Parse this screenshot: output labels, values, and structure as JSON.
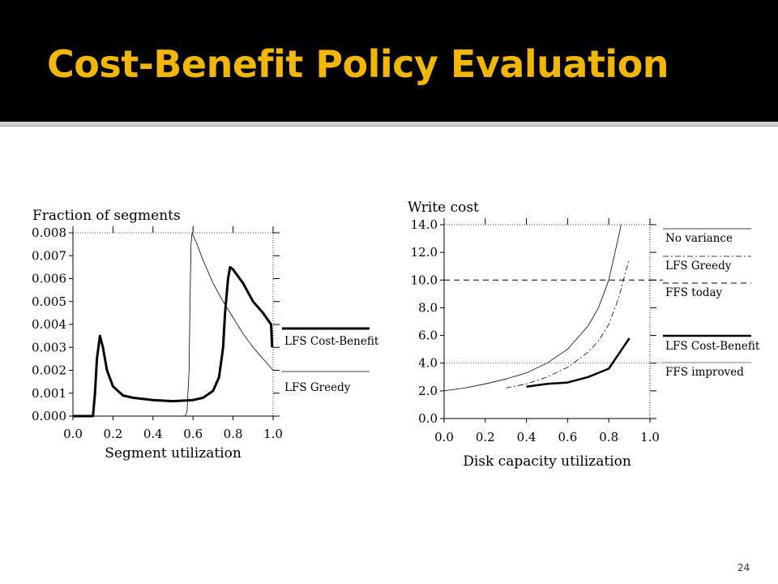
{
  "slide": {
    "title": "Cost-Benefit Policy Evaluation",
    "page_number": "24",
    "title_color": "#f2b705",
    "title_bar_color": "#000000"
  },
  "chart_data": [
    {
      "type": "line",
      "title": "Fraction of segments",
      "xlabel": "Segment utilization",
      "ylabel": "",
      "xlim": [
        0.0,
        1.0
      ],
      "ylim": [
        0.0,
        0.008
      ],
      "xticks": [
        "0.0",
        "0.2",
        "0.4",
        "0.6",
        "0.8",
        "1.0"
      ],
      "yticks": [
        "0.000",
        "0.001",
        "0.002",
        "0.003",
        "0.004",
        "0.005",
        "0.006",
        "0.007",
        "0.008"
      ],
      "grid": false,
      "legend_position": "right",
      "series": [
        {
          "name": "LFS Cost-Benefit",
          "style": "thick",
          "points": [
            [
              0.0,
              0.0
            ],
            [
              0.1,
              0.0
            ],
            [
              0.11,
              0.001
            ],
            [
              0.12,
              0.0025
            ],
            [
              0.135,
              0.0035
            ],
            [
              0.15,
              0.003
            ],
            [
              0.17,
              0.002
            ],
            [
              0.2,
              0.0013
            ],
            [
              0.25,
              0.0009
            ],
            [
              0.3,
              0.0008
            ],
            [
              0.4,
              0.0007
            ],
            [
              0.5,
              0.00065
            ],
            [
              0.6,
              0.0007
            ],
            [
              0.65,
              0.0008
            ],
            [
              0.7,
              0.0011
            ],
            [
              0.73,
              0.0017
            ],
            [
              0.75,
              0.003
            ],
            [
              0.76,
              0.0045
            ],
            [
              0.775,
              0.006
            ],
            [
              0.785,
              0.0065
            ],
            [
              0.8,
              0.0064
            ],
            [
              0.85,
              0.0058
            ],
            [
              0.9,
              0.005
            ],
            [
              0.95,
              0.0045
            ],
            [
              0.99,
              0.004
            ],
            [
              0.995,
              0.003
            ]
          ]
        },
        {
          "name": "LFS Greedy",
          "style": "thin",
          "points": [
            [
              0.0,
              0.0
            ],
            [
              0.56,
              0.0
            ],
            [
              0.57,
              0.0002
            ],
            [
              0.58,
              0.002
            ],
            [
              0.585,
              0.005
            ],
            [
              0.59,
              0.0075
            ],
            [
              0.595,
              0.008
            ],
            [
              0.62,
              0.0075
            ],
            [
              0.65,
              0.0068
            ],
            [
              0.7,
              0.0058
            ],
            [
              0.75,
              0.005
            ],
            [
              0.8,
              0.0043
            ],
            [
              0.85,
              0.0036
            ],
            [
              0.9,
              0.003
            ],
            [
              0.95,
              0.0025
            ],
            [
              1.0,
              0.002
            ]
          ]
        }
      ]
    },
    {
      "type": "line",
      "title": "Write cost",
      "xlabel": "Disk capacity utilization",
      "ylabel": "",
      "xlim": [
        0.0,
        1.0
      ],
      "ylim": [
        0.0,
        14.0
      ],
      "xticks": [
        "0.0",
        "0.2",
        "0.4",
        "0.6",
        "0.8",
        "1.0"
      ],
      "yticks": [
        "0.0",
        "2.0",
        "4.0",
        "6.0",
        "8.0",
        "10.0",
        "12.0",
        "14.0"
      ],
      "grid": false,
      "legend_position": "right",
      "series": [
        {
          "name": "No variance",
          "style": "thin",
          "points": [
            [
              0.0,
              2.0
            ],
            [
              0.1,
              2.2
            ],
            [
              0.2,
              2.5
            ],
            [
              0.3,
              2.85
            ],
            [
              0.4,
              3.3
            ],
            [
              0.5,
              4.0
            ],
            [
              0.6,
              5.0
            ],
            [
              0.7,
              6.7
            ],
            [
              0.75,
              8.0
            ],
            [
              0.8,
              10.0
            ],
            [
              0.85,
              13.3
            ],
            [
              0.86,
              14.0
            ]
          ]
        },
        {
          "name": "LFS Greedy",
          "style": "dashdot",
          "points": [
            [
              0.3,
              2.2
            ],
            [
              0.4,
              2.5
            ],
            [
              0.5,
              3.0
            ],
            [
              0.6,
              3.7
            ],
            [
              0.7,
              4.8
            ],
            [
              0.75,
              5.6
            ],
            [
              0.8,
              6.8
            ],
            [
              0.85,
              8.8
            ],
            [
              0.88,
              10.5
            ],
            [
              0.9,
              11.5
            ]
          ]
        },
        {
          "name": "FFS today",
          "style": "dashed",
          "points": [
            [
              0.0,
              10.0
            ],
            [
              1.0,
              10.0
            ]
          ]
        },
        {
          "name": "LFS Cost-Benefit",
          "style": "thick",
          "points": [
            [
              0.4,
              2.3
            ],
            [
              0.5,
              2.5
            ],
            [
              0.6,
              2.6
            ],
            [
              0.7,
              3.0
            ],
            [
              0.8,
              3.6
            ],
            [
              0.9,
              5.8
            ]
          ]
        },
        {
          "name": "FFS improved",
          "style": "dotted-reference",
          "points": [
            [
              0.0,
              4.0
            ],
            [
              1.0,
              4.0
            ]
          ]
        }
      ]
    }
  ]
}
